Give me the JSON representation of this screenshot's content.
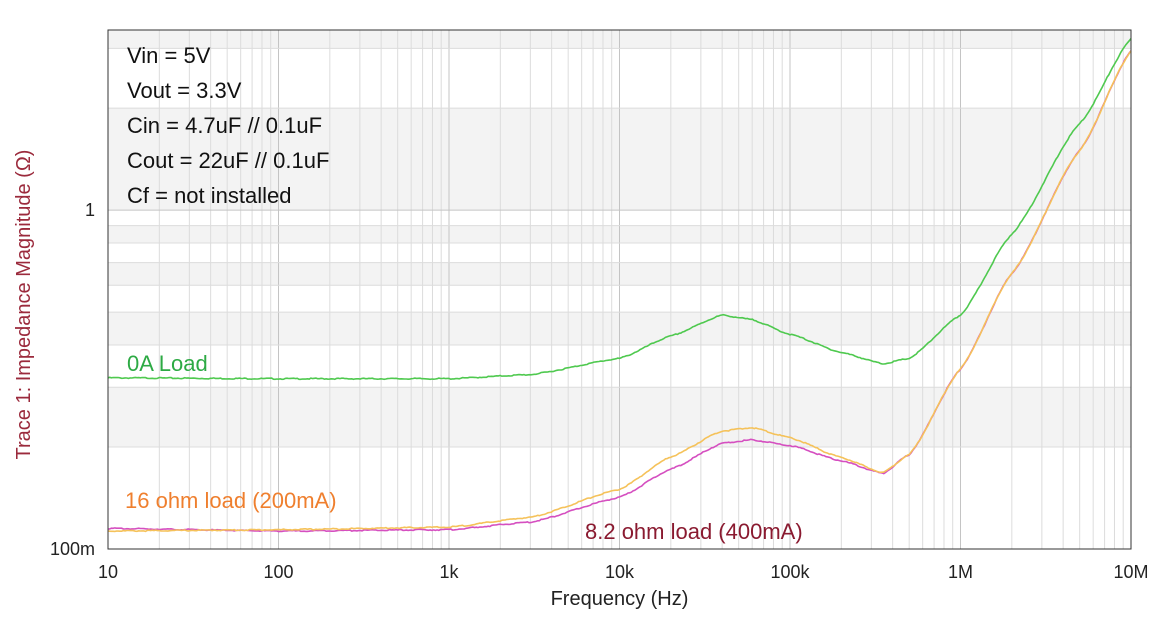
{
  "chart_data": {
    "type": "line",
    "xlabel": "Frequency (Hz)",
    "ylabel": "Trace 1: Impedance Magnitude (Ω)",
    "x_scale": "log",
    "y_scale": "log",
    "xlim": [
      10,
      10000000
    ],
    "ylim": [
      0.1,
      3.4
    ],
    "x_ticks": [
      {
        "value": 10,
        "label": "10"
      },
      {
        "value": 100,
        "label": "100"
      },
      {
        "value": 1000,
        "label": "1k"
      },
      {
        "value": 10000,
        "label": "10k"
      },
      {
        "value": 100000,
        "label": "100k"
      },
      {
        "value": 1000000,
        "label": "1M"
      },
      {
        "value": 10000000,
        "label": "10M"
      }
    ],
    "y_ticks": [
      {
        "value": 0.1,
        "label": "100m"
      },
      {
        "value": 1,
        "label": "1"
      }
    ],
    "grid": true,
    "annotations": [
      "Vin = 5V",
      "Vout = 3.3V",
      "Cin = 4.7uF // 0.1uF",
      "Cout = 22uF // 0.1uF",
      "Cf = not installed"
    ],
    "series": [
      {
        "name": "0A Load",
        "color": "#4fc94f",
        "label_color": "#2daa44",
        "x": [
          10,
          100,
          1000,
          3000,
          10000,
          20000,
          40000,
          60000,
          100000,
          200000,
          350000,
          500000,
          1000000,
          2000000,
          5000000,
          10000000
        ],
        "y": [
          0.32,
          0.318,
          0.318,
          0.327,
          0.365,
          0.425,
          0.49,
          0.475,
          0.43,
          0.38,
          0.352,
          0.365,
          0.49,
          0.85,
          1.8,
          3.2
        ]
      },
      {
        "name": "16 ohm load (200mA)",
        "color": "#f5c25a",
        "label_color": "#ef7f2e",
        "x": [
          10,
          100,
          1000,
          3000,
          10000,
          20000,
          40000,
          60000,
          100000,
          200000,
          350000,
          500000,
          1000000,
          2000000,
          5000000,
          10000000
        ],
        "y": [
          0.113,
          0.114,
          0.116,
          0.124,
          0.15,
          0.187,
          0.223,
          0.228,
          0.213,
          0.186,
          0.168,
          0.19,
          0.34,
          0.65,
          1.5,
          2.95
        ]
      },
      {
        "name": "8.2 ohm load (400mA)",
        "color": "#d54fc0",
        "label_color": "#8a1a30",
        "x": [
          10,
          100,
          1000,
          3000,
          10000,
          20000,
          40000,
          60000,
          100000,
          200000,
          350000,
          500000,
          1000000,
          2000000,
          5000000,
          10000000
        ],
        "y": [
          0.115,
          0.113,
          0.114,
          0.12,
          0.142,
          0.172,
          0.205,
          0.21,
          0.202,
          0.182,
          0.167,
          0.19,
          0.34,
          0.65,
          1.5,
          2.95
        ]
      }
    ]
  }
}
